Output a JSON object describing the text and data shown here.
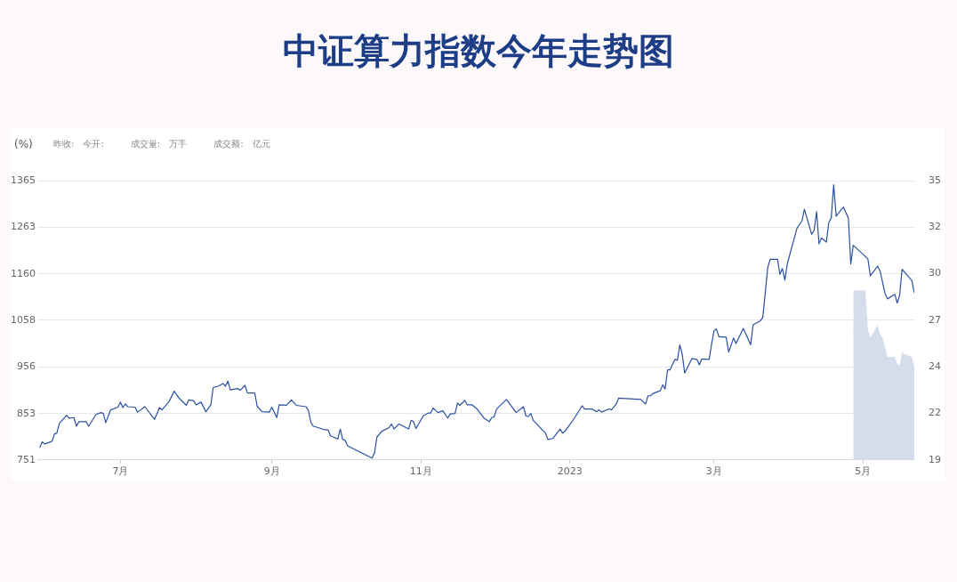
{
  "chart_data": {
    "type": "line",
    "title": "中证算力指数今年走势图",
    "ylabel": "(%)",
    "annotations": [
      "昨收:",
      "今开:",
      "成交量:",
      "万手",
      "成交额:",
      "亿元"
    ],
    "legend": false,
    "grid": "y",
    "marker": "none",
    "xlim": [
      "2022-05-28",
      "2023-05-22"
    ],
    "xticks": [
      {
        "value": "2022-07-01",
        "label": "7月"
      },
      {
        "value": "2022-09-01",
        "label": "9月"
      },
      {
        "value": "2022-11-01",
        "label": "11月"
      },
      {
        "value": "2023-01-01",
        "label": "2023"
      },
      {
        "value": "2023-03-01",
        "label": "3月"
      },
      {
        "value": "2023-05-01",
        "label": "5月"
      }
    ],
    "ylim": [
      751,
      1365
    ],
    "yticks": [
      751,
      853,
      956,
      1058,
      1160,
      1263,
      1365
    ],
    "y2lim": [
      19,
      35
    ],
    "y2ticks": [
      19,
      {
        "value": 21.67,
        "label": "22"
      },
      {
        "value": 24.33,
        "label": "24"
      },
      27,
      {
        "value": 29.67,
        "label": "30"
      },
      {
        "value": 32.33,
        "label": "32"
      },
      35
    ],
    "series": [
      {
        "color": "#2b4fa2",
        "x": [
          "2022-05-29",
          "2022-05-30",
          "2022-05-31",
          "2022-06-03",
          "2022-06-04",
          "2022-06-05",
          "2022-06-06",
          "2022-06-09",
          "2022-06-10",
          "2022-06-12",
          "2022-06-13",
          "2022-06-14",
          "2022-06-17",
          "2022-06-18",
          "2022-06-21",
          "2022-06-23",
          "2022-06-24",
          "2022-06-25",
          "2022-06-27",
          "2022-06-30",
          "2022-07-01",
          "2022-07-02",
          "2022-07-03",
          "2022-07-04",
          "2022-07-07",
          "2022-07-08",
          "2022-07-11",
          "2022-07-15",
          "2022-07-17",
          "2022-07-18",
          "2022-07-21",
          "2022-07-23",
          "2022-07-25",
          "2022-07-28",
          "2022-07-29",
          "2022-07-31",
          "2022-08-01",
          "2022-08-03",
          "2022-08-05",
          "2022-08-07",
          "2022-08-08",
          "2022-08-10",
          "2022-08-12",
          "2022-08-13",
          "2022-08-14",
          "2022-08-15",
          "2022-08-18",
          "2022-08-19",
          "2022-08-21",
          "2022-08-22",
          "2022-08-25",
          "2022-08-26",
          "2022-08-28",
          "2022-08-31",
          "2022-09-01",
          "2022-09-03",
          "2022-09-04",
          "2022-09-07",
          "2022-09-09",
          "2022-09-11",
          "2022-09-15",
          "2022-09-16",
          "2022-09-17",
          "2022-09-18",
          "2022-09-20",
          "2022-09-22",
          "2022-09-24",
          "2022-09-25",
          "2022-09-28",
          "2022-09-29",
          "2022-09-30",
          "2022-10-01",
          "2022-10-02",
          "2022-10-12",
          "2022-10-13",
          "2022-10-14",
          "2022-10-16",
          "2022-10-19",
          "2022-10-20",
          "2022-10-21",
          "2022-10-23",
          "2022-10-27",
          "2022-10-28",
          "2022-10-29",
          "2022-10-30",
          "2022-11-02",
          "2022-11-04",
          "2022-11-05",
          "2022-11-06",
          "2022-11-08",
          "2022-11-10",
          "2022-11-12",
          "2022-11-13",
          "2022-11-15",
          "2022-11-16",
          "2022-11-17",
          "2022-11-19",
          "2022-11-20",
          "2022-11-22",
          "2022-11-24",
          "2022-11-27",
          "2022-11-29",
          "2022-11-30",
          "2022-12-01",
          "2022-12-02",
          "2022-12-06",
          "2022-12-10",
          "2022-12-13",
          "2022-12-14",
          "2022-12-15",
          "2022-12-16",
          "2022-12-17",
          "2022-12-22",
          "2022-12-23",
          "2022-12-25",
          "2022-12-28",
          "2022-12-29",
          "2022-12-30",
          "2023-01-03",
          "2023-01-06",
          "2023-01-07",
          "2023-01-10",
          "2023-01-12",
          "2023-01-13",
          "2023-01-14",
          "2023-01-17",
          "2023-01-18",
          "2023-01-20",
          "2023-01-21",
          "2023-01-27",
          "2023-01-30",
          "2023-02-01",
          "2023-02-02",
          "2023-02-03",
          "2023-02-04",
          "2023-02-07",
          "2023-02-08",
          "2023-02-09",
          "2023-02-10",
          "2023-02-11",
          "2023-02-13",
          "2023-02-14",
          "2023-02-15",
          "2023-02-16",
          "2023-02-17",
          "2023-02-20",
          "2023-02-22",
          "2023-02-23",
          "2023-02-24",
          "2023-02-27",
          "2023-02-28",
          "2023-03-01",
          "2023-03-02",
          "2023-03-03",
          "2023-03-06",
          "2023-03-07",
          "2023-03-09",
          "2023-03-10",
          "2023-03-13",
          "2023-03-15",
          "2023-03-16",
          "2023-03-17",
          "2023-03-20",
          "2023-03-21",
          "2023-03-23",
          "2023-03-24",
          "2023-03-27",
          "2023-03-28",
          "2023-03-29",
          "2023-03-30",
          "2023-03-31",
          "2023-04-04",
          "2023-04-06",
          "2023-04-07",
          "2023-04-10",
          "2023-04-11",
          "2023-04-12",
          "2023-04-13",
          "2023-04-14",
          "2023-04-16",
          "2023-04-17",
          "2023-04-18",
          "2023-04-19",
          "2023-04-20",
          "2023-04-23",
          "2023-04-25",
          "2023-04-26",
          "2023-04-27",
          "2023-05-03",
          "2023-05-04",
          "2023-05-07",
          "2023-05-08",
          "2023-05-10",
          "2023-05-11",
          "2023-05-14",
          "2023-05-15",
          "2023-05-16",
          "2023-05-17",
          "2023-05-21",
          "2023-05-22"
        ],
        "values": [
          778,
          791,
          786,
          792,
          808,
          810,
          831,
          849,
          843,
          844,
          825,
          835,
          835,
          825,
          851,
          855,
          853,
          833,
          861,
          867,
          878,
          866,
          874,
          868,
          867,
          856,
          868,
          840,
          866,
          861,
          880,
          902,
          887,
          871,
          883,
          881,
          872,
          878,
          857,
          872,
          910,
          913,
          919,
          913,
          924,
          905,
          908,
          904,
          915,
          898,
          898,
          869,
          857,
          856,
          867,
          844,
          872,
          871,
          883,
          871,
          868,
          859,
          833,
          825,
          822,
          818,
          817,
          804,
          797,
          819,
          796,
          794,
          782,
          755,
          766,
          801,
          814,
          822,
          830,
          819,
          830,
          819,
          838,
          835,
          820,
          848,
          854,
          854,
          865,
          855,
          859,
          843,
          852,
          853,
          876,
          871,
          882,
          872,
          872,
          863,
          842,
          835,
          844,
          846,
          863,
          884,
          855,
          868,
          848,
          846,
          853,
          838,
          810,
          796,
          798,
          819,
          810,
          814,
          844,
          870,
          863,
          863,
          857,
          861,
          856,
          863,
          861,
          874,
          887,
          885,
          884,
          874,
          892,
          892,
          897,
          903,
          916,
          907,
          949,
          949,
          972,
          970,
          1004,
          983,
          942,
          974,
          972,
          960,
          973,
          972,
          1005,
          1035,
          1039,
          1022,
          1021,
          988,
          1019,
          1007,
          1040,
          1016,
          1004,
          1048,
          1057,
          1065,
          1174,
          1192,
          1192,
          1159,
          1172,
          1146,
          1182,
          1261,
          1276,
          1302,
          1247,
          1256,
          1297,
          1226,
          1239,
          1230,
          1273,
          1283,
          1356,
          1287,
          1307,
          1283,
          1182,
          1223,
          1193,
          1156,
          1177,
          1166,
          1117,
          1105,
          1115,
          1096,
          1113,
          1170,
          1145,
          1118
        ]
      },
      {
        "type": "area",
        "axis": "y2",
        "color": "#d5dcec",
        "x": [
          "2023-04-27",
          "2023-05-02",
          "2023-05-03",
          "2023-05-04",
          "2023-05-07",
          "2023-05-08",
          "2023-05-09",
          "2023-05-11",
          "2023-05-14",
          "2023-05-15",
          "2023-05-16",
          "2023-05-17",
          "2023-05-18",
          "2023-05-21",
          "2023-05-22"
        ],
        "values": [
          28.7,
          28.7,
          26.5,
          26.0,
          26.7,
          26.2,
          26.0,
          24.9,
          24.9,
          24.5,
          24.4,
          25.2,
          25.05,
          24.9,
          24.3
        ]
      }
    ]
  }
}
